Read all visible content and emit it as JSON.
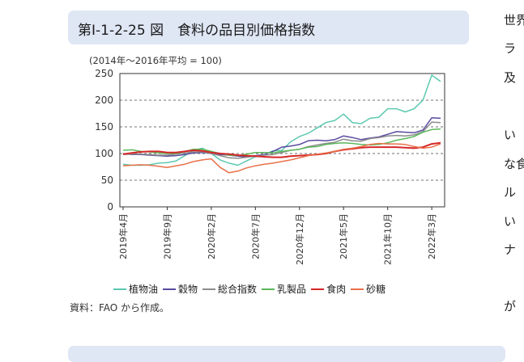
{
  "figure": {
    "title": "第Ⅰ-1-2-25 図　食料の品目別価格指数",
    "note": "(2014年～2016年平均 = 100)",
    "source": "資料：FAO から作成。"
  },
  "side_text": [
    "世界",
    "ラ",
    "及",
    "い",
    "な食",
    "ル",
    "い",
    "ナ",
    "が"
  ],
  "colors": {
    "vegetable_oil": "#5cc9b0",
    "cereals": "#5a4ba0",
    "overall": "#8c8c8c",
    "dairy": "#5cb85c",
    "meat": "#d62728",
    "sugar": "#e8714a"
  },
  "chart_data": {
    "type": "line",
    "title": "",
    "xlabel": "",
    "ylabel": "",
    "ylim": [
      0,
      250
    ],
    "yticks": [
      0,
      50,
      100,
      150,
      200,
      250
    ],
    "grid": "dashed horizontal at 50, 100, 150, 200",
    "x_tick_labels": [
      "2019年4月",
      "2019年9月",
      "2020年2月",
      "2020年7月",
      "2020年12月",
      "2021年5月",
      "2021年10月",
      "2022年3月"
    ],
    "x_tick_index": [
      0,
      5,
      10,
      15,
      20,
      25,
      30,
      35
    ],
    "x": [
      "2019-04",
      "2019-05",
      "2019-06",
      "2019-07",
      "2019-08",
      "2019-09",
      "2019-10",
      "2019-11",
      "2019-12",
      "2020-01",
      "2020-02",
      "2020-03",
      "2020-04",
      "2020-05",
      "2020-06",
      "2020-07",
      "2020-08",
      "2020-09",
      "2020-10",
      "2020-11",
      "2020-12",
      "2021-01",
      "2021-02",
      "2021-03",
      "2021-04",
      "2021-05",
      "2021-06",
      "2021-07",
      "2021-08",
      "2021-09",
      "2021-10",
      "2021-11",
      "2021-12",
      "2022-01",
      "2022-02",
      "2022-03",
      "2022-04"
    ],
    "legend_position": "bottom",
    "series": [
      {
        "name": "植物油",
        "color_key": "vegetable_oil",
        "values": [
          80,
          78,
          78,
          79,
          82,
          83,
          86,
          96,
          106,
          110,
          100,
          88,
          82,
          78,
          86,
          94,
          98,
          105,
          106,
          122,
          132,
          138,
          148,
          158,
          162,
          174,
          158,
          156,
          166,
          168,
          184,
          184,
          178,
          184,
          200,
          247,
          235
        ]
      },
      {
        "name": "穀物",
        "color_key": "cereals",
        "values": [
          100,
          98,
          98,
          97,
          96,
          95,
          96,
          98,
          101,
          102,
          100,
          98,
          97,
          95,
          94,
          96,
          98,
          104,
          112,
          114,
          117,
          124,
          125,
          124,
          126,
          133,
          130,
          126,
          129,
          131,
          136,
          141,
          140,
          139,
          144,
          167,
          166
        ]
      },
      {
        "name": "総合指数",
        "color_key": "overall",
        "values": [
          98,
          99,
          99,
          98,
          97,
          97,
          99,
          101,
          103,
          103,
          100,
          96,
          92,
          91,
          93,
          95,
          97,
          98,
          102,
          106,
          108,
          113,
          116,
          119,
          121,
          127,
          124,
          123,
          128,
          130,
          133,
          134,
          133,
          135,
          141,
          159,
          158
        ]
      },
      {
        "name": "乳製品",
        "color_key": "dairy",
        "values": [
          106,
          107,
          104,
          103,
          101,
          100,
          100,
          104,
          108,
          108,
          104,
          100,
          97,
          96,
          99,
          102,
          102,
          101,
          104,
          106,
          108,
          112,
          113,
          117,
          119,
          120,
          119,
          117,
          116,
          117,
          120,
          125,
          128,
          132,
          140,
          145,
          146
        ]
      },
      {
        "name": "食肉",
        "color_key": "meat",
        "values": [
          99,
          101,
          103,
          104,
          104,
          102,
          102,
          104,
          106,
          105,
          102,
          100,
          99,
          97,
          96,
          95,
          94,
          93,
          93,
          95,
          96,
          97,
          98,
          100,
          104,
          107,
          109,
          111,
          112,
          112,
          112,
          112,
          111,
          110,
          112,
          118,
          120
        ]
      },
      {
        "name": "砂糖",
        "color_key": "sugar",
        "values": [
          77,
          78,
          79,
          78,
          76,
          74,
          77,
          80,
          85,
          88,
          90,
          74,
          64,
          67,
          73,
          77,
          80,
          82,
          85,
          88,
          92,
          96,
          99,
          101,
          104,
          108,
          110,
          113,
          117,
          119,
          118,
          118,
          117,
          113,
          110,
          112,
          118
        ]
      }
    ]
  }
}
